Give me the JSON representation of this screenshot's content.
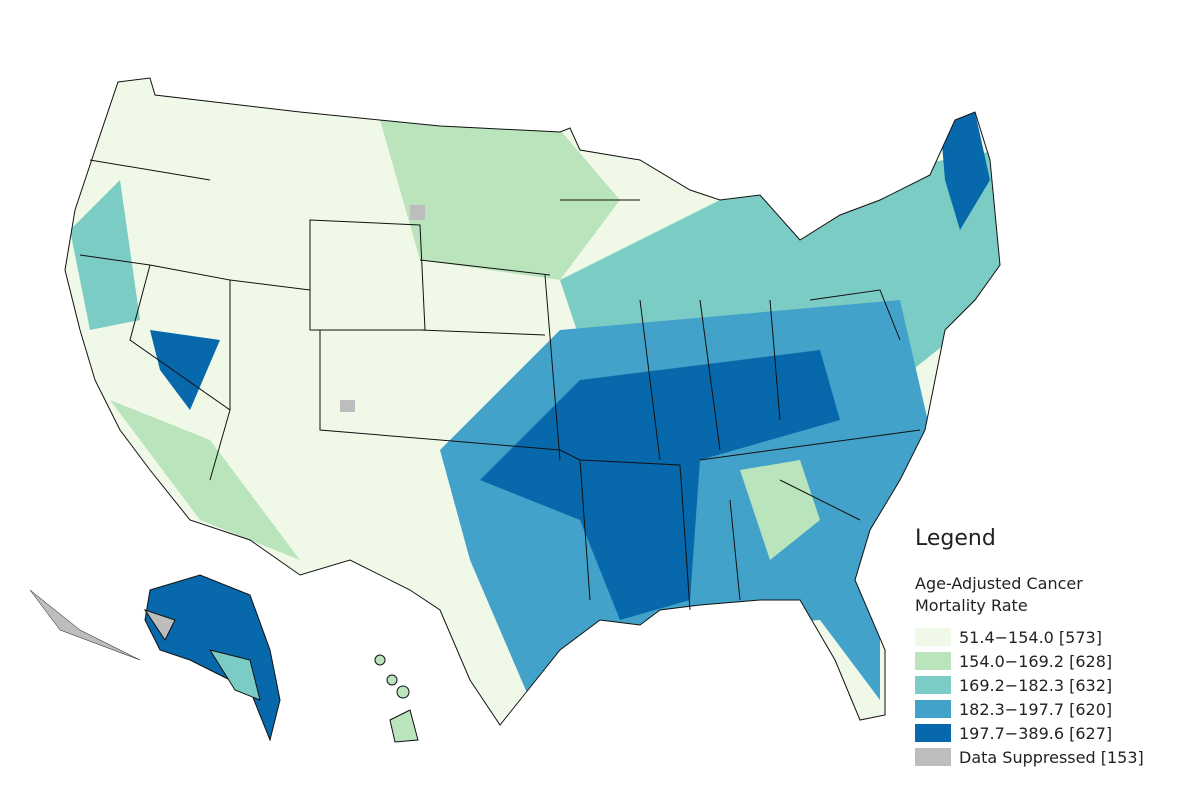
{
  "legend": {
    "title": "Legend",
    "subtitle": "Age-Adjusted Cancer Mortality Rate",
    "items": [
      {
        "label": "51.4−154.0 [573]",
        "color": "#f0f9e8"
      },
      {
        "label": "154.0−169.2 [628]",
        "color": "#bae4bc"
      },
      {
        "label": "169.2−182.3 [632]",
        "color": "#7bccc4"
      },
      {
        "label": "182.3−197.7 [620]",
        "color": "#43a2ca"
      },
      {
        "label": "197.7−389.6 [627]",
        "color": "#0868ac"
      },
      {
        "label": "Data Suppressed [153]",
        "color": "#bdbdbd"
      }
    ]
  }
}
